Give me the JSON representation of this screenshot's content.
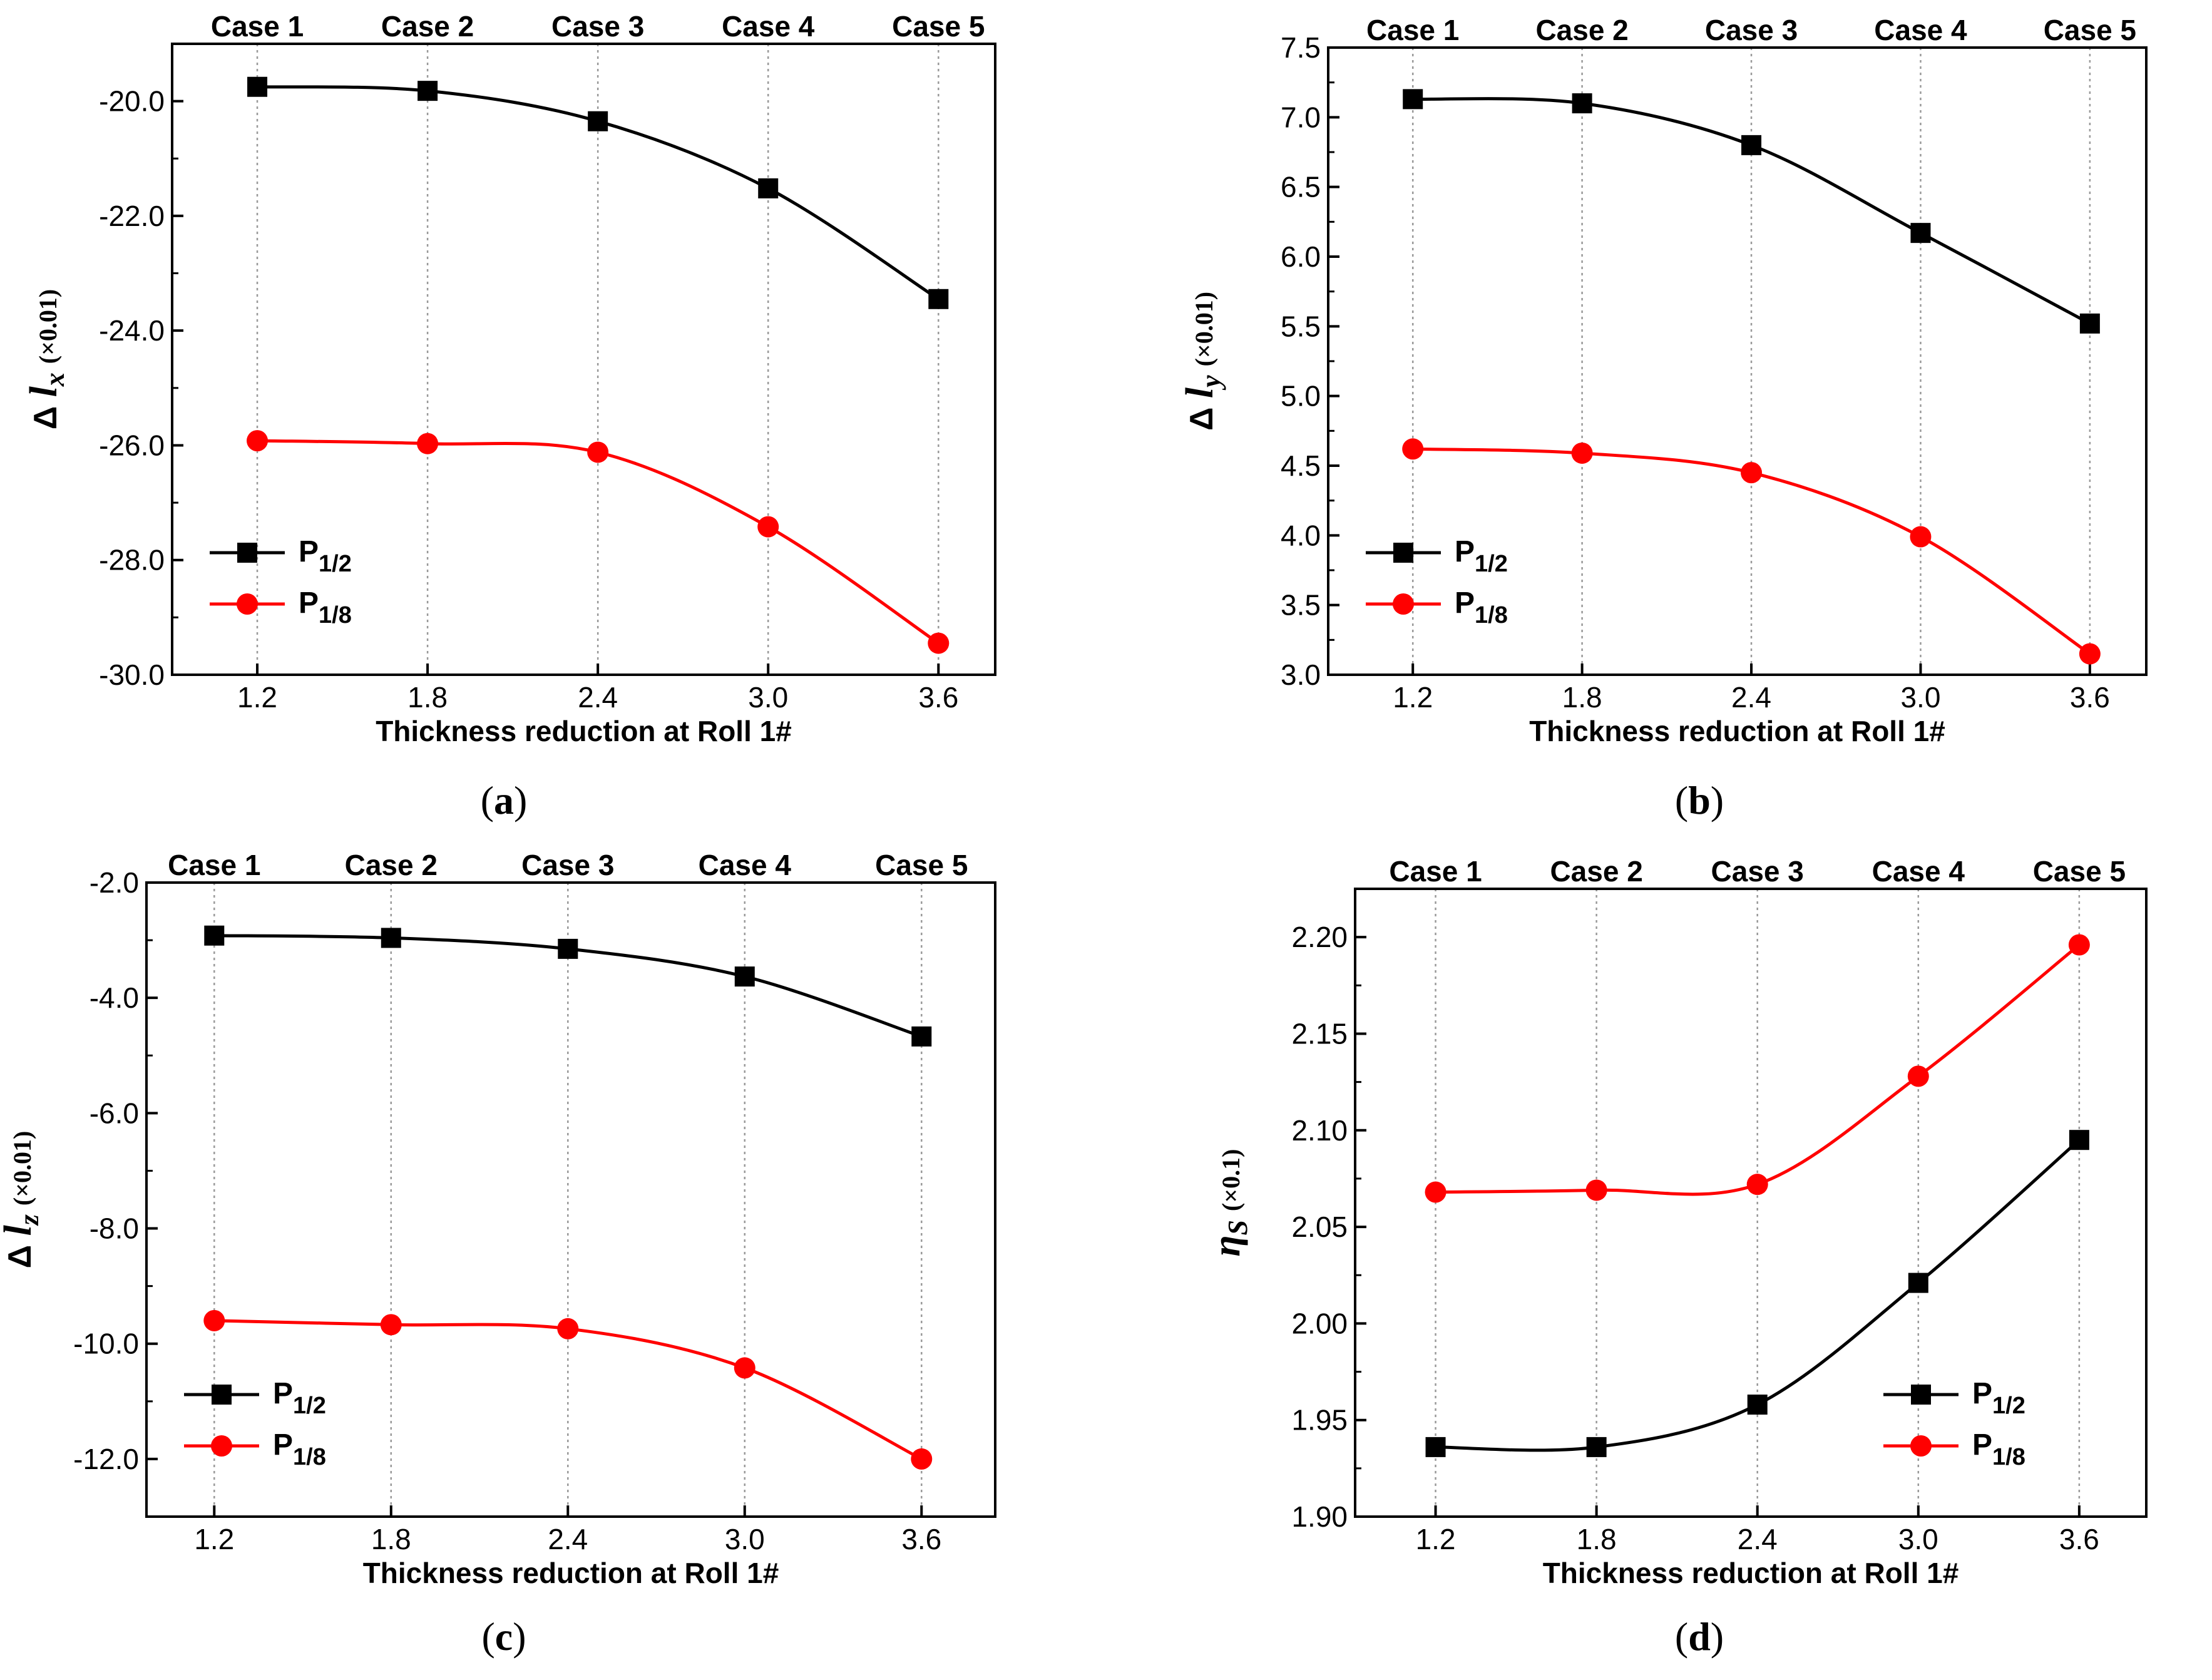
{
  "figure": {
    "caption_font_note": "subfigure labels in serif"
  },
  "chart_data": [
    {
      "id": "a",
      "type": "line",
      "panel_label": "(a)",
      "label_letter": "a",
      "xlabel": "Thickness reduction at Roll 1#",
      "ylabel_prefix": "Δ",
      "ylabel_var": "l",
      "ylabel_sub": "x",
      "ylabel_unit": "(×0.01)",
      "x": [
        1.2,
        1.8,
        2.4,
        3.0,
        3.6
      ],
      "x_ticks": [
        "1.2",
        "1.8",
        "2.4",
        "3.0",
        "3.6"
      ],
      "top_labels": [
        "Case 1",
        "Case 2",
        "Case 3",
        "Case 4",
        "Case 5"
      ],
      "xlim": [
        0.9,
        3.8
      ],
      "ylim": [
        -30.0,
        -19.0
      ],
      "y_ticks": [
        -30.0,
        -28.0,
        -26.0,
        -24.0,
        -22.0,
        -20.0
      ],
      "y_tick_labels": [
        "-30.0",
        "-28.0",
        "-26.0",
        "-24.0",
        "-22.0",
        "-20.0"
      ],
      "legend_position": "bottom-left",
      "series": [
        {
          "name": "P",
          "name_sub": "1/2",
          "color": "#000000",
          "marker": "square",
          "values": [
            -19.75,
            -19.82,
            -20.35,
            -21.52,
            -23.45
          ]
        },
        {
          "name": "P",
          "name_sub": "1/8",
          "color": "#ff0000",
          "marker": "circle",
          "values": [
            -25.92,
            -25.97,
            -26.12,
            -27.42,
            -29.45
          ]
        }
      ]
    },
    {
      "id": "b",
      "type": "line",
      "panel_label": "(b)",
      "label_letter": "b",
      "xlabel": "Thickness reduction at Roll 1#",
      "ylabel_prefix": "Δ",
      "ylabel_var": "l",
      "ylabel_sub": "y",
      "ylabel_unit": "(×0.01)",
      "x": [
        1.2,
        1.8,
        2.4,
        3.0,
        3.6
      ],
      "x_ticks": [
        "1.2",
        "1.8",
        "2.4",
        "3.0",
        "3.6"
      ],
      "top_labels": [
        "Case 1",
        "Case 2",
        "Case 3",
        "Case 4",
        "Case 5"
      ],
      "xlim": [
        0.9,
        3.8
      ],
      "ylim": [
        3.0,
        7.5
      ],
      "y_ticks": [
        3.0,
        3.5,
        4.0,
        4.5,
        5.0,
        5.5,
        6.0,
        6.5,
        7.0,
        7.5
      ],
      "y_tick_labels": [
        "3.0",
        "3.5",
        "4.0",
        "4.5",
        "5.0",
        "5.5",
        "6.0",
        "6.5",
        "7.0",
        "7.5"
      ],
      "legend_position": "bottom-left",
      "series": [
        {
          "name": "P",
          "name_sub": "1/2",
          "color": "#000000",
          "marker": "square",
          "values": [
            7.13,
            7.1,
            6.8,
            6.17,
            5.52
          ]
        },
        {
          "name": "P",
          "name_sub": "1/8",
          "color": "#ff0000",
          "marker": "circle",
          "values": [
            4.62,
            4.59,
            4.45,
            3.99,
            3.15
          ]
        }
      ]
    },
    {
      "id": "c",
      "type": "line",
      "panel_label": "(c)",
      "label_letter": "c",
      "xlabel": "Thickness reduction at Roll 1#",
      "ylabel_prefix": "Δ",
      "ylabel_var": "l",
      "ylabel_sub": "z",
      "ylabel_unit": "(×0.01)",
      "x": [
        1.2,
        1.8,
        2.4,
        3.0,
        3.6
      ],
      "x_ticks": [
        "1.2",
        "1.8",
        "2.4",
        "3.0",
        "3.6"
      ],
      "top_labels": [
        "Case 1",
        "Case 2",
        "Case 3",
        "Case 4",
        "Case 5"
      ],
      "xlim": [
        0.97,
        3.85
      ],
      "ylim": [
        -13.0,
        -2.0
      ],
      "y_ticks": [
        -12.0,
        -10.0,
        -8.0,
        -6.0,
        -4.0,
        -2.0
      ],
      "y_tick_labels": [
        "-12.0",
        "-10.0",
        "-8.0",
        "-6.0",
        "-4.0",
        "-2.0"
      ],
      "legend_position": "bottom-left",
      "series": [
        {
          "name": "P",
          "name_sub": "1/2",
          "color": "#000000",
          "marker": "square",
          "values": [
            -2.92,
            -2.96,
            -3.15,
            -3.63,
            -4.67
          ]
        },
        {
          "name": "P",
          "name_sub": "1/8",
          "color": "#ff0000",
          "marker": "circle",
          "values": [
            -9.6,
            -9.67,
            -9.74,
            -10.42,
            -12.0
          ]
        }
      ]
    },
    {
      "id": "d",
      "type": "line",
      "panel_label": "(d)",
      "label_letter": "d",
      "xlabel": "Thickness reduction at Roll 1#",
      "ylabel_prefix": "",
      "ylabel_var": "η",
      "ylabel_sub": "S",
      "ylabel_unit": "(×0.1)",
      "x": [
        1.2,
        1.8,
        2.4,
        3.0,
        3.6
      ],
      "x_ticks": [
        "1.2",
        "1.8",
        "2.4",
        "3.0",
        "3.6"
      ],
      "top_labels": [
        "Case 1",
        "Case 2",
        "Case 3",
        "Case 4",
        "Case 5"
      ],
      "xlim": [
        0.9,
        3.85
      ],
      "ylim": [
        1.9,
        2.225
      ],
      "y_ticks": [
        1.9,
        1.95,
        2.0,
        2.05,
        2.1,
        2.15,
        2.2
      ],
      "y_tick_labels": [
        "1.90",
        "1.95",
        "2.00",
        "2.05",
        "2.10",
        "2.15",
        "2.20"
      ],
      "legend_position": "bottom-right",
      "series": [
        {
          "name": "P",
          "name_sub": "1/2",
          "color": "#000000",
          "marker": "square",
          "values": [
            1.936,
            1.936,
            1.958,
            2.021,
            2.095
          ]
        },
        {
          "name": "P",
          "name_sub": "1/8",
          "color": "#ff0000",
          "marker": "circle",
          "values": [
            2.068,
            2.069,
            2.072,
            2.128,
            2.196
          ]
        }
      ]
    }
  ]
}
